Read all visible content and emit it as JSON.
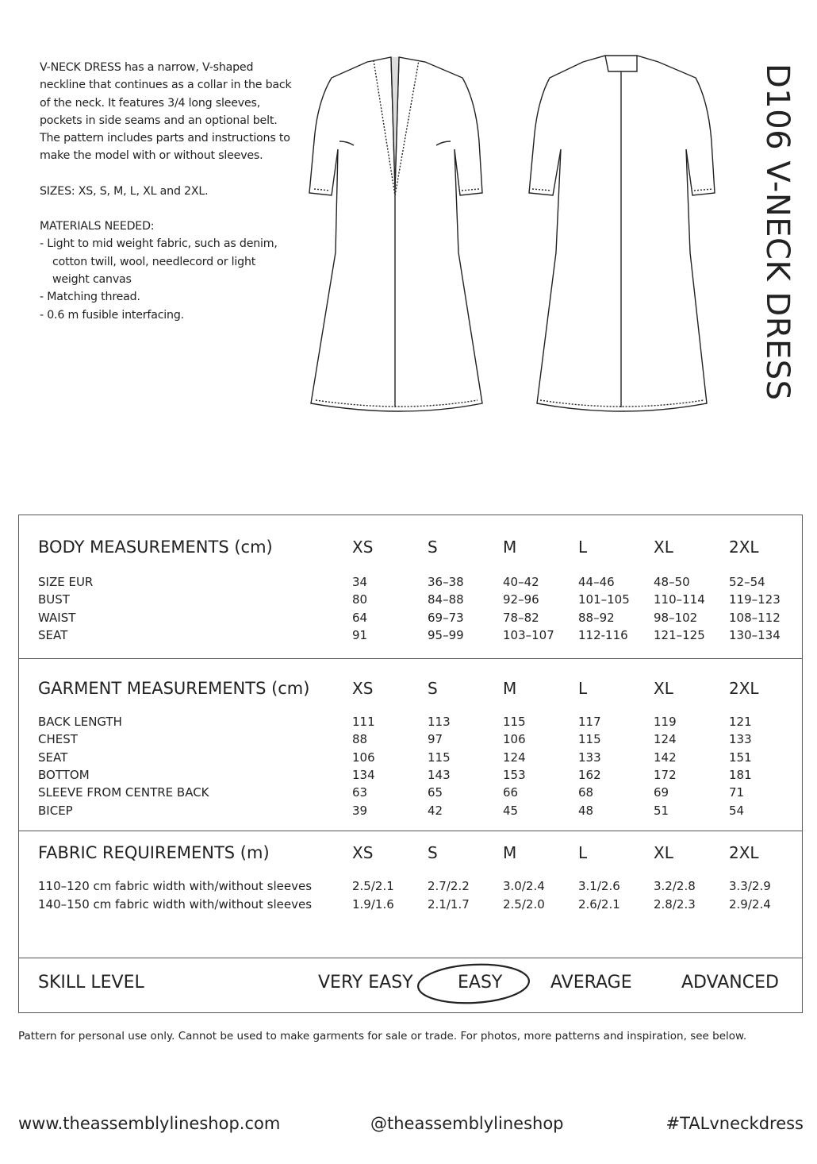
{
  "description": {
    "intro": "V-NECK DRESS has a narrow, V-shaped neckline that continues as a collar in the back of the neck. It features 3/4 long sleeves, pockets in side seams and an optional belt. The pattern includes parts and instructions to make the model with or without sleeves.",
    "sizes": "SIZES: XS, S, M, L, XL and 2XL.",
    "materials_heading": "MATERIALS NEEDED:",
    "materials": [
      "Light to mid weight fabric, such as denim, cotton twill, wool, needlecord or light weight canvas",
      "Matching thread.",
      "0.6 m fusible interfacing."
    ]
  },
  "title": "D106 V-NECK DRESS",
  "size_columns": [
    "XS",
    "S",
    "M",
    "L",
    "XL",
    "2XL"
  ],
  "sections": [
    {
      "heading": "BODY MEASUREMENTS (cm)",
      "rows": [
        {
          "label": "SIZE EUR",
          "values": [
            "34",
            "36–38",
            "40–42",
            "44–46",
            "48–50",
            "52–54"
          ]
        },
        {
          "label": "BUST",
          "values": [
            "80",
            "84–88",
            "92–96",
            "101–105",
            "110–114",
            "119–123"
          ]
        },
        {
          "label": "WAIST",
          "values": [
            "64",
            "69–73",
            "78–82",
            "88–92",
            "98–102",
            "108–112"
          ]
        },
        {
          "label": "SEAT",
          "values": [
            "91",
            "95–99",
            "103–107",
            "112-116",
            "121–125",
            "130–134"
          ]
        }
      ]
    },
    {
      "heading": "GARMENT MEASUREMENTS (cm)",
      "rows": [
        {
          "label": "BACK LENGTH",
          "values": [
            "111",
            "113",
            "115",
            "117",
            "119",
            "121"
          ]
        },
        {
          "label": "CHEST",
          "values": [
            "88",
            "97",
            "106",
            "115",
            "124",
            "133"
          ]
        },
        {
          "label": "SEAT",
          "values": [
            "106",
            "115",
            "124",
            "133",
            "142",
            "151"
          ]
        },
        {
          "label": "BOTTOM",
          "values": [
            "134",
            "143",
            "153",
            "162",
            "172",
            "181"
          ]
        },
        {
          "label": "SLEEVE FROM CENTRE BACK",
          "values": [
            "63",
            "65",
            "66",
            "68",
            "69",
            "71"
          ]
        },
        {
          "label": "BICEP",
          "values": [
            "39",
            "42",
            "45",
            "48",
            "51",
            "54"
          ]
        }
      ]
    },
    {
      "heading": "FABRIC REQUIREMENTS (m)",
      "rows": [
        {
          "label": "110–120 cm fabric width with/without sleeves",
          "values": [
            "2.5/2.1",
            "2.7/2.2",
            "3.0/2.4",
            "3.1/2.6",
            "3.2/2.8",
            "3.3/2.9"
          ]
        },
        {
          "label": "140–150 cm fabric width with/without sleeves",
          "values": [
            "1.9/1.6",
            "2.1/1.7",
            "2.5/2.0",
            "2.6/2.1",
            "2.8/2.3",
            "2.9/2.4"
          ]
        }
      ]
    }
  ],
  "skill": {
    "label": "SKILL LEVEL",
    "levels": [
      "VERY EASY",
      "EASY",
      "AVERAGE",
      "ADVANCED"
    ],
    "selected": "EASY"
  },
  "note": "Pattern for personal use only. Cannot be used to make garments for sale or trade. For photos, more patterns and inspiration, see below.",
  "footer": {
    "website": "www.theassemblylineshop.com",
    "handle": "@theassemblylineshop",
    "hashtag": "#TALvneckdress"
  }
}
